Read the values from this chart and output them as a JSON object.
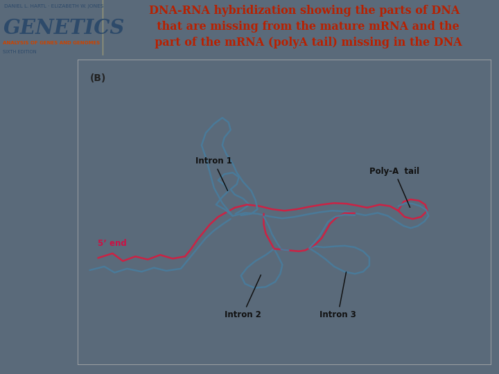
{
  "bg_outer": "#5a6a7a",
  "bg_header": "#f0ead8",
  "bg_diagram": "#ffffff",
  "header_title": "DNA-RNA hybridization showing the parts of DNA\n  that are missing from the mature mRNA and the\n  part of the mRNA (polyA tail) missing in the DNA",
  "header_title_color": "#b82000",
  "header_title_fontsize": 11.5,
  "logo_genetics": "GENETICS",
  "logo_genetics_color": "#2d4a6a",
  "logo_authors": "DANIEL L. HARTL · ELIZABETH W. JONES",
  "logo_subtitle": "ANALYSIS OF GENES AND GENOMES",
  "logo_edition": "SIXTH EDITION",
  "logo_color_small": "#2d4a6a",
  "logo_subtitle_color": "#cc4400",
  "diagram_label": "(B)",
  "label_intron1": "Intron 1",
  "label_intron2": "Intron 2",
  "label_intron3": "Intron 3",
  "label_polya": "Poly-A  tail",
  "label_5end": "5’ end",
  "label_5end_color": "#cc1144",
  "label_color": "#111111",
  "dna_color": "#4a7a99",
  "mrna_color": "#cc2244"
}
